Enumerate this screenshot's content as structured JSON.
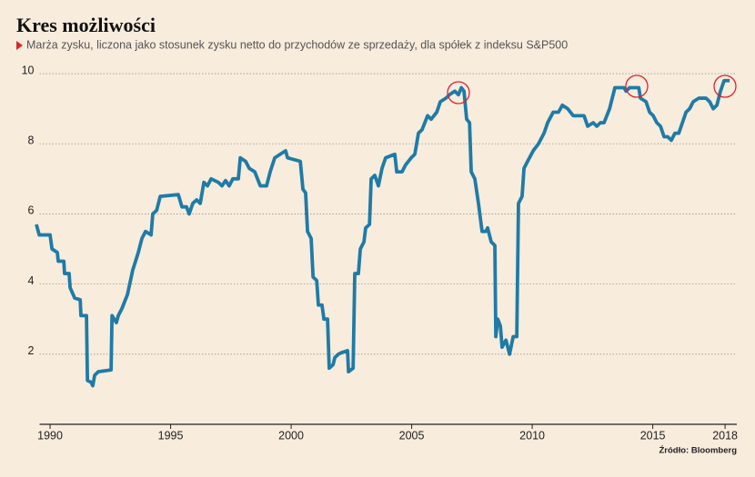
{
  "chart_data": {
    "type": "line",
    "title": "Kres możliwości",
    "subtitle": "Marża zysku, liczona jako stosunek zysku netto do przychodów ze sprzedaży, dla spółek z indeksu S&P500",
    "source": "Źródło: Bloomberg",
    "xlim": [
      1989.3,
      2018.6
    ],
    "xticks": [
      1990,
      1995,
      2000,
      2005,
      2010,
      2015,
      2018
    ],
    "ylim": [
      0,
      10.4
    ],
    "yticks": [
      2,
      4,
      6,
      8,
      10
    ],
    "grid": true,
    "x": [
      1989.43,
      1989.55,
      1990.0,
      1990.08,
      1990.3,
      1990.34,
      1990.57,
      1990.6,
      1990.79,
      1990.83,
      1991.02,
      1991.25,
      1991.28,
      1991.51,
      1991.55,
      1991.7,
      1991.77,
      1991.85,
      1992.0,
      1992.53,
      1992.57,
      1992.75,
      1992.83,
      1992.98,
      1993.21,
      1993.43,
      1993.66,
      1993.81,
      1993.96,
      1994.19,
      1994.26,
      1994.42,
      1994.57,
      1995.32,
      1995.47,
      1995.66,
      1995.77,
      1995.92,
      1996.08,
      1996.23,
      1996.38,
      1996.53,
      1996.68,
      1996.98,
      1997.13,
      1997.28,
      1997.43,
      1997.58,
      1997.81,
      1997.89,
      1998.11,
      1998.26,
      1998.49,
      1998.72,
      1998.98,
      1999.13,
      1999.32,
      1999.77,
      1999.85,
      2000.38,
      2000.49,
      2000.6,
      2000.68,
      2000.83,
      2000.91,
      2001.06,
      2001.13,
      2001.28,
      2001.36,
      2001.51,
      2001.58,
      2001.74,
      2001.81,
      2001.96,
      2002.11,
      2002.34,
      2002.38,
      2002.57,
      2002.64,
      2002.79,
      2002.87,
      2003.02,
      2003.09,
      2003.25,
      2003.32,
      2003.47,
      2003.62,
      2003.77,
      2003.92,
      2004.3,
      2004.38,
      2004.6,
      2004.75,
      2004.98,
      2005.13,
      2005.28,
      2005.43,
      2005.66,
      2005.81,
      2006.04,
      2006.19,
      2006.42,
      2006.57,
      2006.79,
      2006.94,
      2007.06,
      2007.17,
      2007.28,
      2007.4,
      2007.47,
      2007.62,
      2007.77,
      2007.92,
      2008.08,
      2008.15,
      2008.3,
      2008.45,
      2008.49,
      2008.57,
      2008.68,
      2008.75,
      2008.91,
      2009.06,
      2009.21,
      2009.36,
      2009.43,
      2009.58,
      2009.66,
      2009.81,
      2010.04,
      2010.26,
      2010.49,
      2010.64,
      2010.87,
      2011.09,
      2011.25,
      2011.47,
      2011.7,
      2011.92,
      2012.15,
      2012.3,
      2012.53,
      2012.68,
      2012.83,
      2012.98,
      2013.21,
      2013.43,
      2013.81,
      2013.89,
      2014.04,
      2014.42,
      2014.49,
      2014.72,
      2014.87,
      2015.02,
      2015.17,
      2015.32,
      2015.47,
      2015.62,
      2015.77,
      2015.92,
      2016.08,
      2016.23,
      2016.38,
      2016.53,
      2016.68,
      2016.91,
      2017.21,
      2017.36,
      2017.51,
      2017.66,
      2017.81,
      2017.96,
      2018.19
    ],
    "series": [
      {
        "color": "#1f7ba6",
        "values": [
          5.7,
          5.4,
          5.4,
          5.0,
          4.9,
          4.65,
          4.65,
          4.3,
          4.3,
          3.9,
          3.6,
          3.55,
          3.1,
          3.1,
          1.25,
          1.2,
          1.1,
          1.4,
          1.5,
          1.55,
          3.1,
          2.9,
          3.1,
          3.3,
          3.7,
          4.4,
          4.9,
          5.3,
          5.5,
          5.4,
          6.0,
          6.1,
          6.5,
          6.55,
          6.2,
          6.2,
          6.0,
          6.3,
          6.4,
          6.3,
          6.9,
          6.8,
          7.0,
          6.9,
          6.8,
          6.95,
          6.8,
          7.0,
          7.0,
          7.6,
          7.5,
          7.3,
          7.2,
          6.8,
          6.8,
          7.2,
          7.6,
          7.8,
          7.6,
          7.5,
          6.7,
          6.6,
          5.5,
          5.3,
          4.2,
          4.1,
          3.4,
          3.4,
          3.0,
          3.0,
          1.6,
          1.7,
          1.9,
          2.0,
          2.05,
          2.1,
          1.5,
          1.6,
          4.3,
          4.3,
          5.0,
          5.2,
          5.6,
          5.7,
          7.0,
          7.1,
          6.8,
          7.3,
          7.6,
          7.7,
          7.2,
          7.2,
          7.4,
          7.6,
          7.7,
          8.3,
          8.4,
          8.8,
          8.7,
          8.9,
          9.2,
          9.3,
          9.4,
          9.5,
          9.4,
          9.6,
          9.5,
          8.7,
          8.6,
          7.2,
          7.0,
          6.3,
          5.5,
          5.5,
          5.6,
          5.2,
          5.1,
          2.5,
          3.0,
          2.8,
          2.2,
          2.4,
          2.0,
          2.5,
          2.5,
          6.3,
          6.5,
          7.3,
          7.5,
          7.8,
          8.0,
          8.3,
          8.6,
          8.9,
          8.9,
          9.1,
          9.0,
          8.8,
          8.8,
          8.8,
          8.5,
          8.6,
          8.5,
          8.6,
          8.6,
          9.0,
          9.6,
          9.6,
          9.5,
          9.6,
          9.6,
          9.3,
          9.2,
          8.9,
          8.8,
          8.6,
          8.5,
          8.2,
          8.2,
          8.1,
          8.3,
          8.3,
          8.6,
          8.9,
          9.0,
          9.2,
          9.3,
          9.3,
          9.2,
          9.0,
          9.1,
          9.5,
          9.8,
          9.8
        ]
      }
    ]
  }
}
